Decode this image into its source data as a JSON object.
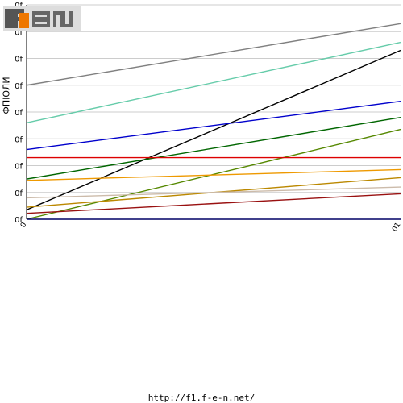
{
  "logo": {
    "text": "F1EN"
  },
  "footer": {
    "url": "http://f1.f-e-n.net/"
  },
  "chart_data": {
    "type": "line",
    "title": "",
    "xlabel": "",
    "ylabel": "ФПЮЛИ",
    "x_ticks": [
      "0",
      "01"
    ],
    "y_ticks": [
      "0f",
      "0f",
      "0f",
      "0f",
      "0f",
      "0f",
      "0f",
      "0f",
      "0f"
    ],
    "xlim": [
      0,
      1
    ],
    "ylim": [
      0,
      8
    ],
    "grid": true,
    "legend": "none",
    "series": [
      {
        "color": "#808080",
        "values": [
          5.0,
          7.3
        ]
      },
      {
        "color": "#66ccaa",
        "values": [
          3.6,
          6.6
        ]
      },
      {
        "color": "#000000",
        "values": [
          0.35,
          6.3
        ]
      },
      {
        "color": "#0000cc",
        "values": [
          2.6,
          4.4
        ]
      },
      {
        "color": "#006600",
        "values": [
          1.5,
          3.8
        ]
      },
      {
        "color": "#558800",
        "values": [
          0.0,
          3.35
        ]
      },
      {
        "color": "#dd0000",
        "values": [
          2.3,
          2.3
        ]
      },
      {
        "color": "#ee9900",
        "values": [
          1.45,
          1.85
        ]
      },
      {
        "color": "#bb8800",
        "values": [
          0.45,
          1.55
        ]
      },
      {
        "color": "#ccbbaa",
        "values": [
          0.8,
          1.2
        ]
      },
      {
        "color": "#991111",
        "values": [
          0.22,
          0.95
        ]
      }
    ]
  }
}
